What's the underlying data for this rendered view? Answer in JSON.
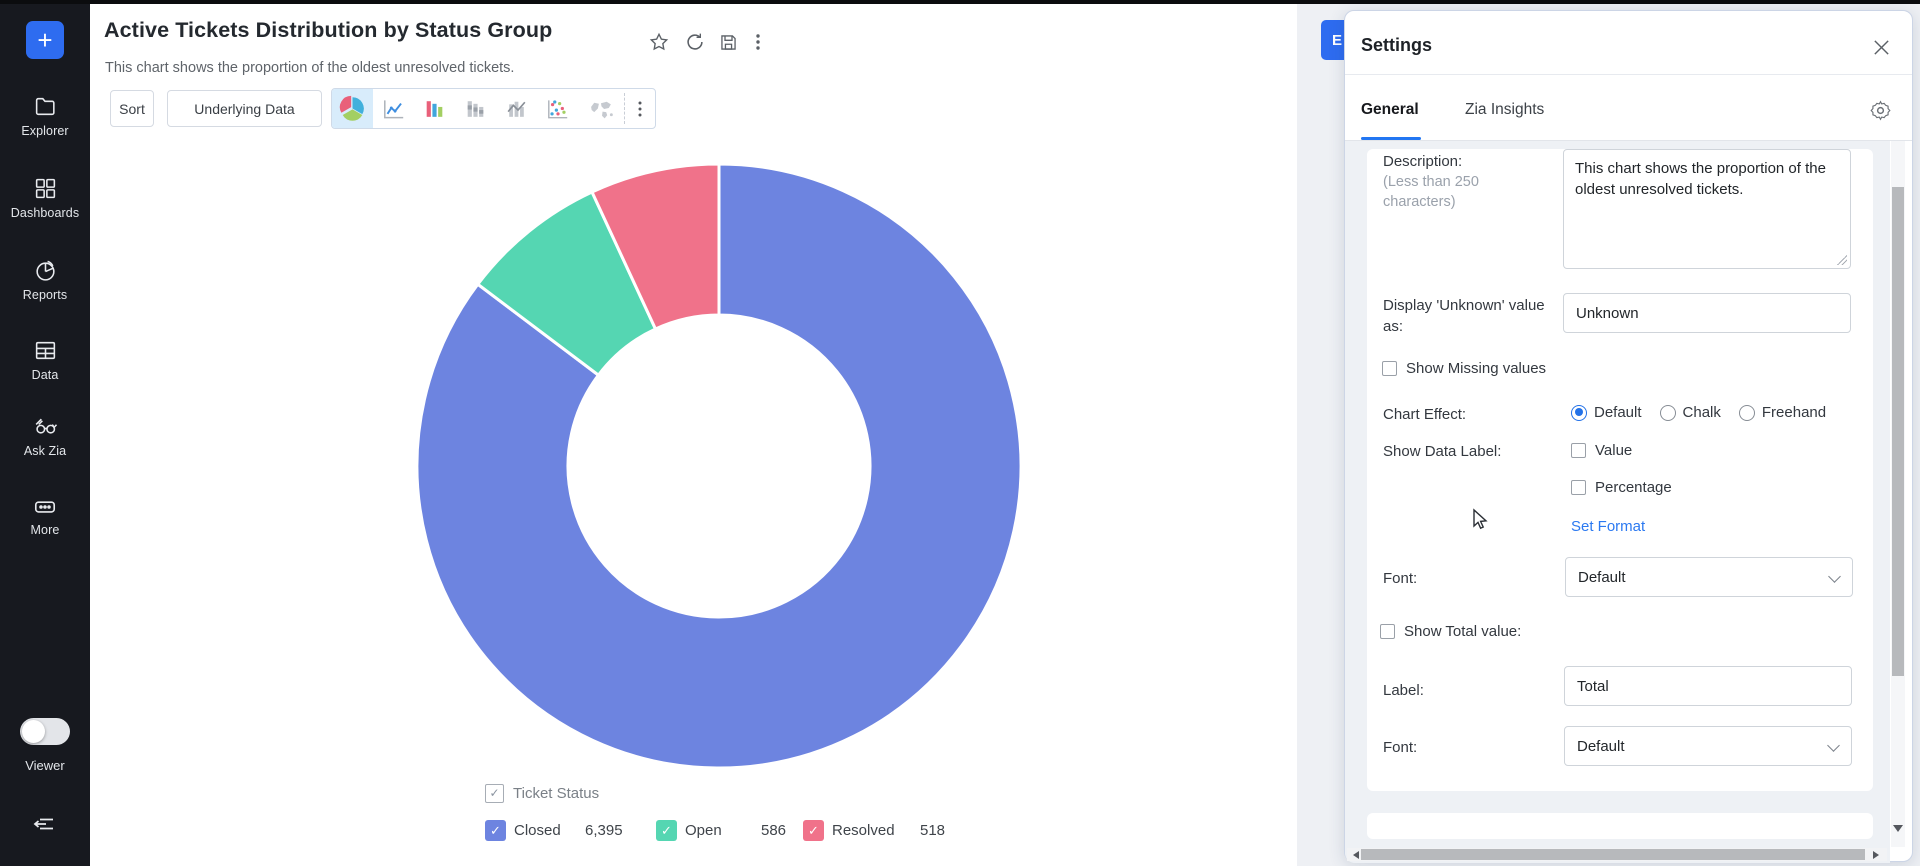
{
  "sidebar": {
    "plus_label": "+",
    "items": [
      {
        "label": "Explorer",
        "icon": "folder"
      },
      {
        "label": "Dashboards",
        "icon": "grid"
      },
      {
        "label": "Reports",
        "icon": "pie"
      },
      {
        "label": "Data",
        "icon": "table"
      },
      {
        "label": "Ask Zia",
        "icon": "zia-glasses"
      },
      {
        "label": "More",
        "icon": "ellipsis"
      }
    ],
    "viewer_label": "Viewer"
  },
  "header": {
    "title": "Active Tickets Distribution by Status Group",
    "subtitle": "This chart shows the proportion of the oldest unresolved tickets."
  },
  "toolbar": {
    "sort_label": "Sort",
    "underlying_data_label": "Underlying Data",
    "chart_types": [
      "pie",
      "line",
      "bar",
      "stacked-bar",
      "combo",
      "scatter",
      "map"
    ],
    "selected_chart_type": "pie"
  },
  "chart_data": {
    "type": "pie",
    "subtype": "donut",
    "title": "Active Tickets Distribution by Status Group",
    "categories": [
      "Closed",
      "Open",
      "Resolved"
    ],
    "values": [
      6395,
      586,
      518
    ],
    "display_values": [
      "6,395",
      "586",
      "518"
    ],
    "colors": [
      "#6d84e0",
      "#55d6b2",
      "#f0728a"
    ],
    "start_angle_deg": 0,
    "direction": "clockwise",
    "inner_radius_ratio": 0.5,
    "legend_title": "Ticket Status",
    "legend_position": "bottom"
  },
  "legend": {
    "group": {
      "label": "Ticket Status",
      "checked": true,
      "check_glyph": "✓"
    },
    "items": [
      {
        "label": "Closed",
        "value": "6,395",
        "color": "#6d84e0",
        "checked": true,
        "check_glyph": "✓"
      },
      {
        "label": "Open",
        "value": "586",
        "color": "#55d6b2",
        "checked": true,
        "check_glyph": "✓"
      },
      {
        "label": "Resolved",
        "value": "518",
        "color": "#f0728a",
        "checked": true,
        "check_glyph": "✓"
      }
    ]
  },
  "edit_button": {
    "visible_label": "E"
  },
  "settings": {
    "title": "Settings",
    "tabs": [
      {
        "label": "General",
        "active": true
      },
      {
        "label": "Zia Insights",
        "active": false
      }
    ],
    "description": {
      "label": "Description:",
      "hint": "(Less than 250 characters)",
      "value": "This chart shows the proportion of the oldest unresolved tickets."
    },
    "display_unknown": {
      "label": "Display 'Unknown' value as:",
      "value": "Unknown"
    },
    "show_missing": {
      "label": "Show Missing values",
      "checked": false
    },
    "chart_effect": {
      "label": "Chart Effect:",
      "options": [
        {
          "label": "Default",
          "selected": true
        },
        {
          "label": "Chalk",
          "selected": false
        },
        {
          "label": "Freehand",
          "selected": false
        }
      ]
    },
    "show_data_label": {
      "label": "Show Data Label:",
      "checkboxes": [
        {
          "label": "Value",
          "checked": false
        },
        {
          "label": "Percentage",
          "checked": false
        }
      ],
      "set_format_label": "Set Format"
    },
    "data_label_font": {
      "label": "Font:",
      "value": "Default"
    },
    "show_total": {
      "label": "Show Total value:",
      "checked": false
    },
    "total_label_field": {
      "label": "Label:",
      "value": "Total"
    },
    "total_font": {
      "label": "Font:",
      "value": "Default"
    }
  }
}
